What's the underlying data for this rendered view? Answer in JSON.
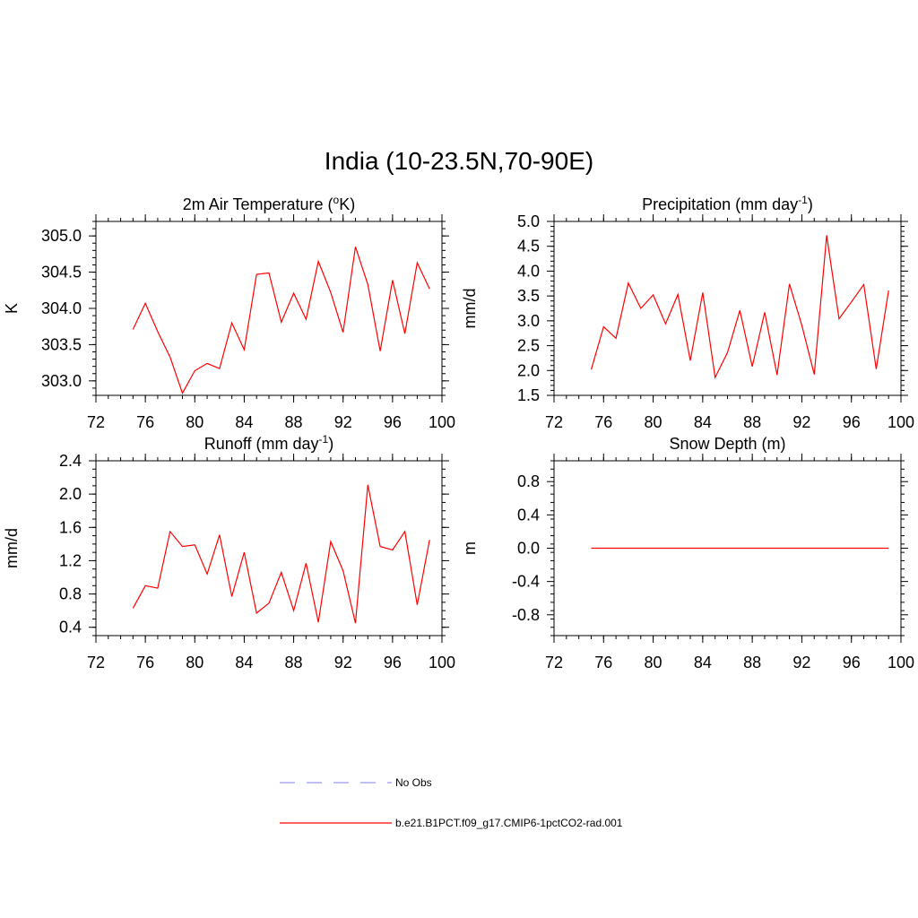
{
  "title": "India (10-23.5N,70-90E)",
  "legend": [
    {
      "label": "No Obs",
      "color": "#9999ee",
      "dashed": true
    },
    {
      "label": "b.e21.B1PCT.f09_g17.CMIP6-1pctCO2-rad.001",
      "color": "#ff0000",
      "dashed": false
    }
  ],
  "chart_data": [
    {
      "type": "line",
      "title": "2m Air Temperature (",
      "title_sup": "o",
      "title_after": "K)",
      "ylabel": "K",
      "xlim": [
        72,
        100
      ],
      "ylim": [
        302.8,
        305.2
      ],
      "xticks": [
        72,
        76,
        80,
        84,
        88,
        92,
        96,
        100
      ],
      "yticks": [
        303.0,
        303.5,
        304.0,
        304.5,
        305.0
      ],
      "yminor": 0.1,
      "ydecimals": 1,
      "series": [
        {
          "color": "#ff0000",
          "x": [
            75,
            76,
            77,
            78,
            79,
            80,
            81,
            82,
            83,
            84,
            85,
            86,
            87,
            88,
            89,
            90,
            91,
            92,
            93,
            94,
            95,
            96,
            97,
            98,
            99
          ],
          "y": [
            303.71,
            304.07,
            303.68,
            303.33,
            302.83,
            303.14,
            303.24,
            303.17,
            303.8,
            303.43,
            304.47,
            304.49,
            303.81,
            304.21,
            303.85,
            304.65,
            304.22,
            303.67,
            304.85,
            304.33,
            303.41,
            304.39,
            303.65,
            304.63,
            304.27
          ]
        }
      ]
    },
    {
      "type": "line",
      "title": "Precipitation (mm day",
      "title_sup": "-1",
      "title_after": ")",
      "ylabel": "mm/d",
      "xlim": [
        72,
        100
      ],
      "ylim": [
        1.5,
        5.0
      ],
      "xticks": [
        72,
        76,
        80,
        84,
        88,
        92,
        96,
        100
      ],
      "yticks": [
        1.5,
        2.0,
        2.5,
        3.0,
        3.5,
        4.0,
        4.5,
        5.0
      ],
      "yminor": 0.1,
      "ydecimals": 1,
      "series": [
        {
          "color": "#ff0000",
          "x": [
            75,
            76,
            77,
            78,
            79,
            80,
            81,
            82,
            83,
            84,
            85,
            86,
            87,
            88,
            89,
            90,
            91,
            92,
            93,
            94,
            95,
            96,
            97,
            98,
            99
          ],
          "y": [
            2.02,
            2.88,
            2.65,
            3.76,
            3.25,
            3.52,
            2.94,
            3.53,
            2.2,
            3.57,
            1.86,
            2.36,
            3.21,
            2.08,
            3.17,
            1.91,
            3.74,
            2.91,
            1.92,
            4.72,
            3.04,
            3.38,
            3.73,
            2.03,
            3.61
          ]
        }
      ]
    },
    {
      "type": "line",
      "title": "Runoff (mm day",
      "title_sup": "-1",
      "title_after": ")",
      "ylabel": "mm/d",
      "xlim": [
        72,
        100
      ],
      "ylim": [
        0.3,
        2.4
      ],
      "xticks": [
        72,
        76,
        80,
        84,
        88,
        92,
        96,
        100
      ],
      "yticks": [
        0.4,
        0.8,
        1.2,
        1.6,
        2.0,
        2.4
      ],
      "yminor": 0.1,
      "ydecimals": 1,
      "series": [
        {
          "color": "#ff0000",
          "x": [
            75,
            76,
            77,
            78,
            79,
            80,
            81,
            82,
            83,
            84,
            85,
            86,
            87,
            88,
            89,
            90,
            91,
            92,
            93,
            94,
            95,
            96,
            97,
            98,
            99
          ],
          "y": [
            0.63,
            0.9,
            0.87,
            1.55,
            1.37,
            1.39,
            1.04,
            1.51,
            0.77,
            1.3,
            0.57,
            0.69,
            1.06,
            0.6,
            1.17,
            0.46,
            1.43,
            1.08,
            0.45,
            2.11,
            1.37,
            1.33,
            1.55,
            0.67,
            1.45
          ]
        }
      ]
    },
    {
      "type": "line",
      "title": "Snow Depth (m)",
      "title_sup": "",
      "title_after": "",
      "ylabel": "m",
      "xlim": [
        72,
        100
      ],
      "ylim": [
        -1.05,
        1.05
      ],
      "xticks": [
        72,
        76,
        80,
        84,
        88,
        92,
        96,
        100
      ],
      "yticks": [
        -0.8,
        -0.4,
        0.0,
        0.4,
        0.8
      ],
      "yminor": 0.1,
      "ydecimals": 1,
      "series": [
        {
          "color": "#ff0000",
          "x": [
            75,
            76,
            77,
            78,
            79,
            80,
            81,
            82,
            83,
            84,
            85,
            86,
            87,
            88,
            89,
            90,
            91,
            92,
            93,
            94,
            95,
            96,
            97,
            98,
            99
          ],
          "y": [
            0,
            0,
            0,
            0,
            0,
            0,
            0,
            0,
            0,
            0,
            0,
            0,
            0,
            0,
            0,
            0,
            0,
            0,
            0,
            0,
            0,
            0,
            0,
            0,
            0
          ]
        }
      ]
    }
  ]
}
